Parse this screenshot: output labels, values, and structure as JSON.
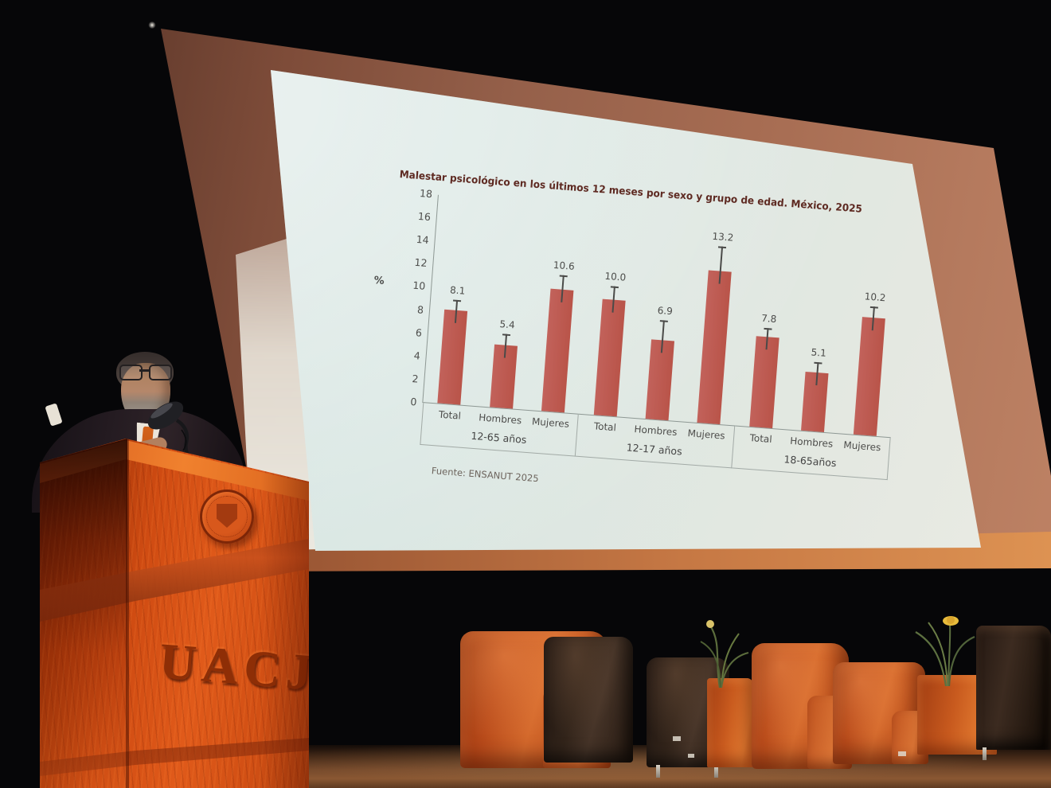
{
  "podium": {
    "logo_text": "UACJ"
  },
  "chart_data": {
    "type": "bar",
    "title": "Malestar psicológico en los últimos 12 meses por sexo y grupo de edad. México, 2025",
    "ylabel": "%",
    "xlabel": "",
    "ylim": [
      0,
      18
    ],
    "ytick_step": 2,
    "grid": false,
    "legend": false,
    "bar_color_left": "#c2625b",
    "bar_color_right": "#b95449",
    "error_bars": true,
    "groups": [
      {
        "label": "12-65 años",
        "categories": [
          "Total",
          "Hombres",
          "Mujeres"
        ],
        "values": [
          8.1,
          5.4,
          10.6
        ],
        "value_labels": [
          "8.1",
          "5.4",
          "10.6"
        ],
        "errors_upper": [
          0.9,
          1.0,
          1.2
        ]
      },
      {
        "label": "12-17 años",
        "categories": [
          "Total",
          "Hombres",
          "Mujeres"
        ],
        "values": [
          10.0,
          6.9,
          13.2
        ],
        "value_labels": [
          "10.0",
          "6.9",
          "13.2"
        ],
        "errors_upper": [
          1.2,
          1.7,
          2.1
        ]
      },
      {
        "label": "18-65años",
        "categories": [
          "Total",
          "Hombres",
          "Mujeres"
        ],
        "values": [
          7.8,
          5.1,
          10.2
        ],
        "value_labels": [
          "7.8",
          "5.1",
          "10.2"
        ],
        "errors_upper": [
          0.8,
          0.9,
          0.9
        ]
      }
    ],
    "source": "Fuente: ENSANUT 2025"
  },
  "colors": {
    "slide_background": "#dbe7e3",
    "screen_margin": "#a66c52",
    "chart_title_text": "#5e2a22",
    "bar": "#bf5851",
    "podium_wood": "#cf4b12",
    "chair_orange": "#c2561f",
    "chair_dark": "#32241a",
    "stage_floor": "#7d4e2e",
    "suit": "#241b21",
    "tie": "#c65a18"
  }
}
